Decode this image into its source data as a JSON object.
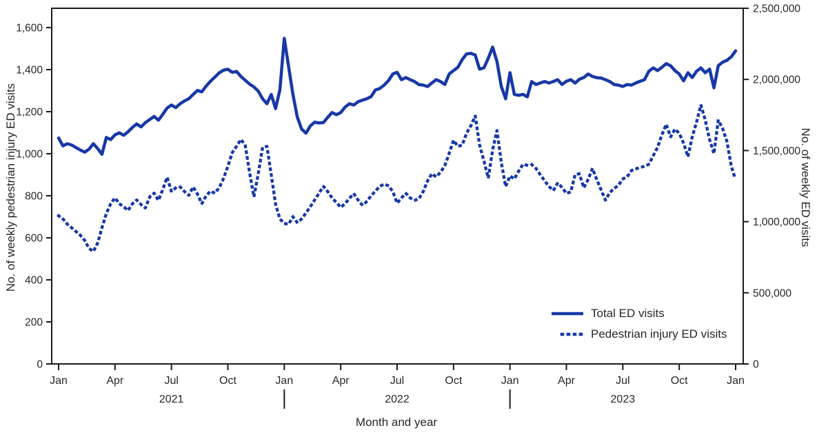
{
  "figure": {
    "background": "#ffffff",
    "line_color": "#1738a6",
    "text_color": "#262626",
    "axis_color": "#1a1a1a"
  },
  "left_axis": {
    "title": "No. of weekly pedestrian injury ED visits",
    "min": 0,
    "max": 1600,
    "ticks": [
      {
        "value": 0,
        "label": "0"
      },
      {
        "value": 200,
        "label": "200"
      },
      {
        "value": 400,
        "label": "400"
      },
      {
        "value": 600,
        "label": "600"
      },
      {
        "value": 800,
        "label": "800"
      },
      {
        "value": 1000,
        "label": "1,000"
      },
      {
        "value": 1200,
        "label": "1,200"
      },
      {
        "value": 1400,
        "label": "1,400"
      },
      {
        "value": 1600,
        "label": "1,600"
      }
    ]
  },
  "right_axis": {
    "title": "No. of weekly ED visits",
    "min": 0,
    "max": 2500000,
    "ticks": [
      {
        "value": 0,
        "label": "0"
      },
      {
        "value": 500000,
        "label": "500,000"
      },
      {
        "value": 1000000,
        "label": "1,000,000"
      },
      {
        "value": 1500000,
        "label": "1,500,000"
      },
      {
        "value": 2000000,
        "label": "2,000,000"
      },
      {
        "value": 2500000,
        "label": "2,500,000"
      }
    ]
  },
  "x_axis": {
    "title": "Month and year",
    "month_ticks": [
      {
        "week": 0,
        "label": "Jan"
      },
      {
        "week": 13,
        "label": "Apr"
      },
      {
        "week": 26,
        "label": "Jul"
      },
      {
        "week": 39,
        "label": "Oct"
      },
      {
        "week": 52,
        "label": "Jan"
      },
      {
        "week": 65,
        "label": "Apr"
      },
      {
        "week": 78,
        "label": "Jul"
      },
      {
        "week": 91,
        "label": "Oct"
      },
      {
        "week": 104,
        "label": "Jan"
      },
      {
        "week": 117,
        "label": "Apr"
      },
      {
        "week": 130,
        "label": "Jul"
      },
      {
        "week": 143,
        "label": "Oct"
      },
      {
        "week": 156,
        "label": "Jan"
      }
    ],
    "year_labels": [
      {
        "week": 26,
        "label": "2021"
      },
      {
        "week": 78,
        "label": "2022"
      },
      {
        "week": 130,
        "label": "2023"
      }
    ],
    "year_separator_weeks": [
      52,
      104
    ]
  },
  "legend": {
    "items": [
      {
        "label": "Total ED visits",
        "style": "solid"
      },
      {
        "label": "Pedestrian injury ED visits",
        "style": "dotted"
      }
    ]
  },
  "chart_data": {
    "type": "line",
    "title": "",
    "xlabel": "Month and year",
    "x_unit": "weeks since Jan 2021 (index of values array)",
    "x_range": "Jan 2021 - Jan 2024",
    "left_ylabel": "No. of weekly pedestrian injury ED visits",
    "right_ylabel": "No. of weekly ED visits",
    "left_ylim": [
      0,
      1600
    ],
    "right_ylim": [
      0,
      2500000
    ],
    "grid": false,
    "legend_position": "inside lower right",
    "series": [
      {
        "name": "Total ED visits",
        "axis": "right",
        "style": "solid",
        "values": [
          1588000,
          1533000,
          1548000,
          1539000,
          1521000,
          1504000,
          1489000,
          1509000,
          1548000,
          1514000,
          1474000,
          1592000,
          1577000,
          1610000,
          1625000,
          1607000,
          1632000,
          1662000,
          1687000,
          1666000,
          1696000,
          1718000,
          1740000,
          1713000,
          1755000,
          1799000,
          1820000,
          1802000,
          1829000,
          1849000,
          1864000,
          1894000,
          1923000,
          1913000,
          1953000,
          1987000,
          2016000,
          2046000,
          2065000,
          2071000,
          2050000,
          2056000,
          2021000,
          1994000,
          1967000,
          1947000,
          1917000,
          1864000,
          1829000,
          1894000,
          1795000,
          1928000,
          2289000,
          2090000,
          1894000,
          1735000,
          1651000,
          1622000,
          1673000,
          1699000,
          1694000,
          1696000,
          1733000,
          1767000,
          1752000,
          1767000,
          1805000,
          1829000,
          1820000,
          1843000,
          1854000,
          1864000,
          1879000,
          1926000,
          1936000,
          1960000,
          1991000,
          2038000,
          2050000,
          1998000,
          2013000,
          1998000,
          1985000,
          1964000,
          1960000,
          1950000,
          1975000,
          1998000,
          1985000,
          1964000,
          2038000,
          2062000,
          2085000,
          2139000,
          2179000,
          2183000,
          2171000,
          2072000,
          2081000,
          2149000,
          2227000,
          2127000,
          1950000,
          1864000,
          2047000,
          1895000,
          1888000,
          1895000,
          1877000,
          1985000,
          1964000,
          1975000,
          1985000,
          1975000,
          1985000,
          1998000,
          1964000,
          1987000,
          1998000,
          1975000,
          2001000,
          2013000,
          2038000,
          2021000,
          2012000,
          2009000,
          1998000,
          1985000,
          1964000,
          1960000,
          1950000,
          1964000,
          1960000,
          1975000,
          1987000,
          1998000,
          2057000,
          2081000,
          2062000,
          2085000,
          2111000,
          2096000,
          2062000,
          2038000,
          1990000,
          2047000,
          2013000,
          2057000,
          2081000,
          2047000,
          2072000,
          1941000,
          2097000,
          2121000,
          2134000,
          2159000,
          2201000
        ]
      },
      {
        "name": "Pedestrian injury ED visits",
        "axis": "left",
        "style": "dotted",
        "values": [
          705,
          690,
          665,
          648,
          630,
          612,
          588,
          550,
          535,
          575,
          648,
          715,
          762,
          790,
          762,
          748,
          730,
          762,
          780,
          758,
          742,
          795,
          812,
          778,
          830,
          888,
          820,
          838,
          842,
          820,
          802,
          842,
          808,
          762,
          800,
          822,
          812,
          838,
          882,
          940,
          1005,
          1035,
          1068,
          1040,
          910,
          795,
          905,
          1030,
          1035,
          900,
          760,
          690,
          668,
          665,
          700,
          672,
          690,
          718,
          748,
          780,
          812,
          845,
          820,
          790,
          768,
          745,
          762,
          788,
          810,
          780,
          755,
          772,
          800,
          822,
          845,
          855,
          848,
          820,
          765,
          790,
          812,
          790,
          778,
          785,
          820,
          870,
          905,
          890,
          912,
          943,
          1002,
          1064,
          1035,
          1041,
          1097,
          1133,
          1180,
          1041,
          966,
          884,
          1018,
          1110,
          959,
          844,
          894,
          880,
          917,
          950,
          945,
          949,
          930,
          900,
          871,
          844,
          825,
          861,
          840,
          811,
          818,
          900,
          905,
          838,
          877,
          930,
          877,
          828,
          779,
          815,
          834,
          850,
          880,
          890,
          920,
          928,
          935,
          940,
          950,
          990,
          1030,
          1090,
          1140,
          1080,
          1117,
          1097,
          1050,
          986,
          1081,
          1150,
          1232,
          1160,
          1068,
          1000,
          1160,
          1120,
          1058,
          940,
          875
        ]
      }
    ]
  }
}
